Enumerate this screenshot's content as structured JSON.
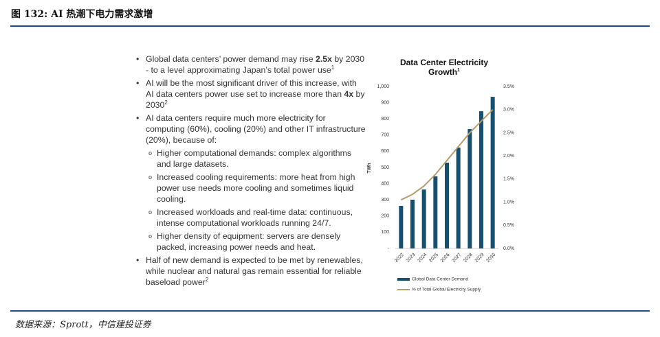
{
  "header": {
    "title": "图 132: AI 热潮下电力需求激增"
  },
  "bullets": [
    {
      "parts": [
        "Global data centers’ power demand may rise ",
        "2.5x",
        " by 2030 - to a level approximating Japan’s total power use"
      ],
      "sup": "1"
    },
    {
      "parts": [
        "AI will be the most significant driver of this increase, with AI data centers power use set to increase more than ",
        "4x",
        " by 2030"
      ],
      "sup": "2"
    },
    {
      "parts": [
        "AI data centers require much more electricity for computing (60%), cooling (20%) and other IT infrastructure (20%), because of:"
      ],
      "subs": [
        "Higher computational demands: complex algorithms and large datasets.",
        "Increased cooling requirements: more heat from high power use needs more cooling and sometimes liquid cooling.",
        "Increased workloads and real-time data: continuous, intense computational workloads running 24/7.",
        "Higher density of equipment: servers are densely packed, increasing power needs and heat."
      ]
    },
    {
      "parts": [
        "Half of new demand is expected to be met by renewables, while nuclear and natural gas remain essential for reliable baseload power"
      ],
      "sup": "2"
    }
  ],
  "chart_data": {
    "type": "bar-line",
    "title": "Data Center Electricity Growth",
    "title_sup": "1",
    "ylabel": "TWh",
    "categories": [
      "2022",
      "2023",
      "2024",
      "2025",
      "2026",
      "2027",
      "2028",
      "2029",
      "2030"
    ],
    "series": [
      {
        "name": "Global Data Center Demand",
        "color": "#17506e",
        "type": "bar",
        "values": [
          263,
          301,
          364,
          445,
          530,
          623,
          737,
          847,
          936
        ]
      },
      {
        "name": "% of Total Global Electricity Supply",
        "color": "#b99a6b",
        "type": "line",
        "axis": "y2",
        "values": [
          1.05,
          1.17,
          1.35,
          1.6,
          1.9,
          2.2,
          2.5,
          2.75,
          3.0
        ]
      }
    ],
    "ylim": [
      0,
      1000
    ],
    "yticks": [
      {
        "value": 0,
        "label": "-"
      },
      100,
      200,
      300,
      400,
      500,
      600,
      700,
      800,
      900,
      {
        "value": 1000,
        "label": "1,000"
      }
    ],
    "y2lim": [
      0,
      3.5
    ],
    "y2ticks": [
      {
        "value": 0,
        "label": "0.0%"
      },
      {
        "value": 0.5,
        "label": "0.5%"
      },
      {
        "value": 1,
        "label": "1.0%"
      },
      {
        "value": 1.5,
        "label": "1.5%"
      },
      {
        "value": 2,
        "label": "2.0%"
      },
      {
        "value": 2.5,
        "label": "2.5%"
      },
      {
        "value": 3,
        "label": "3.0%"
      },
      {
        "value": 3.5,
        "label": "3.5%"
      }
    ]
  },
  "footer": {
    "source": "数据来源：Sprott，中信建投证券"
  }
}
